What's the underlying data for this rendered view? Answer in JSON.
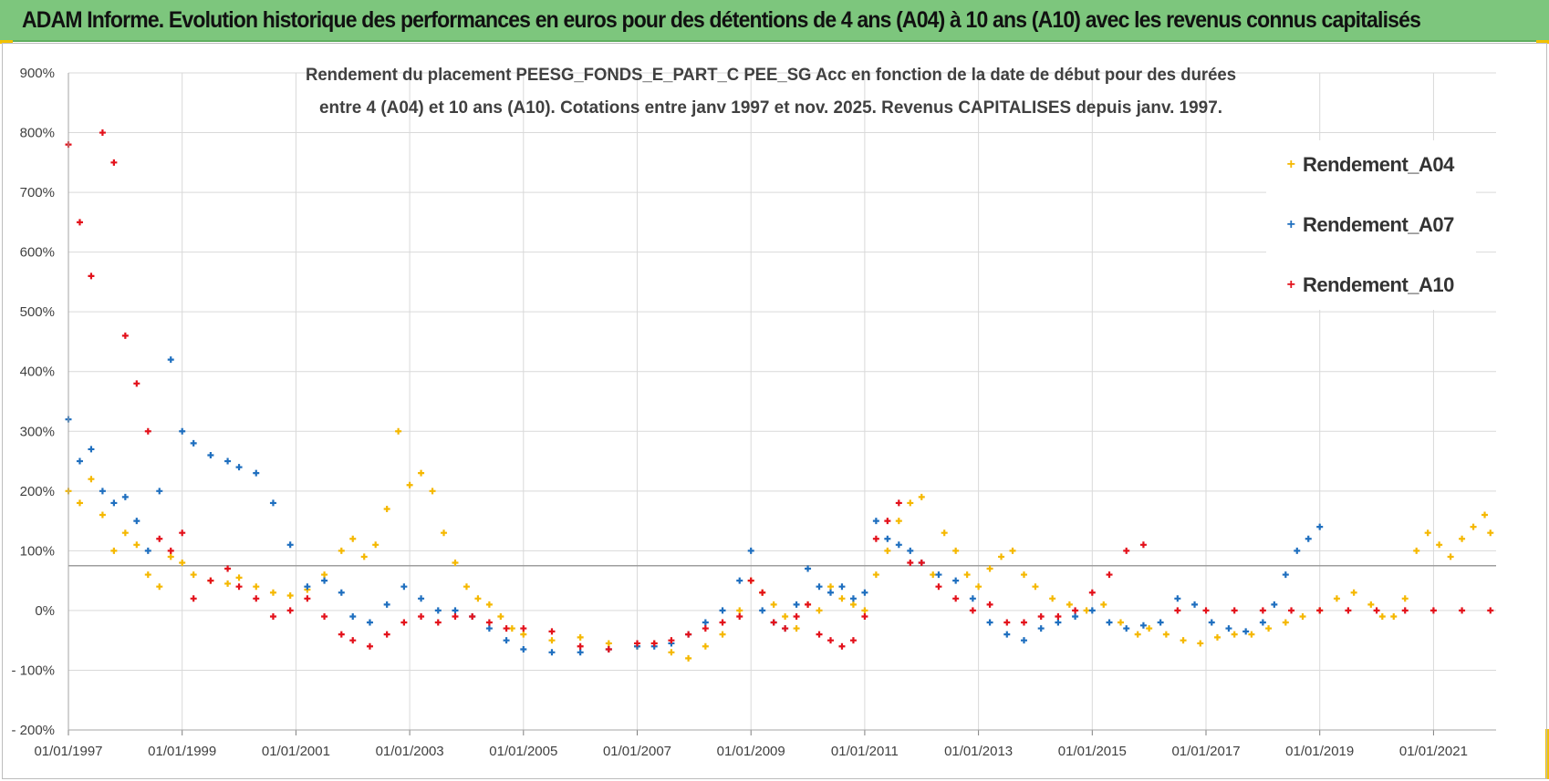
{
  "header": {
    "title": "ADAM Informe. Evolution historique des performances en euros pour des détentions de 4 ans (A04) à 10 ans (A10) avec les revenus connus capitalisés"
  },
  "colors": {
    "header_bg": "#7dc67d",
    "corner_accent": "#f2c200",
    "A04": "#f5b800",
    "A07": "#1f6fbf",
    "A10": "#e3111b",
    "grid": "#d9d9d9",
    "reference_line": "#9e9e9e",
    "axis_text": "#404040"
  },
  "chart_data": {
    "type": "scatter",
    "title_lines": [
      "Rendement du placement PEESG_FONDS_E_PART_C PEE_SG Acc en fonction de la date de début pour des durées",
      "entre 4 (A04) et 10 ans (A10). Cotations entre janv 1997 et nov. 2025. Revenus CAPITALISES depuis janv. 1997."
    ],
    "xlabel": "",
    "ylabel": "",
    "x_tick_labels": [
      "01/01/1997",
      "01/01/1999",
      "01/01/2001",
      "01/01/2003",
      "01/01/2005",
      "01/01/2007",
      "01/01/2009",
      "01/01/2011",
      "01/01/2013",
      "01/01/2015",
      "01/01/2017",
      "01/01/2019",
      "01/01/2021"
    ],
    "xlim": [
      1997.0,
      2022.1
    ],
    "y_tick_labels": [
      "900%",
      "800%",
      "700%",
      "600%",
      "500%",
      "400%",
      "300%",
      "200%",
      "100%",
      "0%",
      "- 100%",
      "- 200%"
    ],
    "ylim": [
      -200,
      900
    ],
    "reference_line_y": 75,
    "grid": true,
    "legend_position": "top-right",
    "series": [
      {
        "name": "Rendement_A04",
        "x": [
          1997.0,
          1997.2,
          1997.4,
          1997.6,
          1997.8,
          1998.0,
          1998.2,
          1998.4,
          1998.6,
          1998.8,
          1999.0,
          1999.2,
          1999.5,
          1999.8,
          2000.0,
          2000.3,
          2000.6,
          2000.9,
          2001.2,
          2001.5,
          2001.8,
          2002.0,
          2002.2,
          2002.4,
          2002.6,
          2002.8,
          2003.0,
          2003.2,
          2003.4,
          2003.6,
          2003.8,
          2004.0,
          2004.2,
          2004.4,
          2004.6,
          2004.8,
          2005.0,
          2005.5,
          2006.0,
          2006.5,
          2007.0,
          2007.3,
          2007.6,
          2007.9,
          2008.2,
          2008.5,
          2008.8,
          2009.0,
          2009.2,
          2009.4,
          2009.6,
          2009.8,
          2010.0,
          2010.2,
          2010.4,
          2010.6,
          2010.8,
          2011.0,
          2011.2,
          2011.4,
          2011.6,
          2011.8,
          2012.0,
          2012.2,
          2012.4,
          2012.6,
          2012.8,
          2013.0,
          2013.2,
          2013.4,
          2013.6,
          2013.8,
          2014.0,
          2014.3,
          2014.6,
          2014.9,
          2015.2,
          2015.5,
          2015.8,
          2016.0,
          2016.3,
          2016.6,
          2016.9,
          2017.2,
          2017.5,
          2017.8,
          2018.1,
          2018.4,
          2018.7,
          2019.0,
          2019.3,
          2019.6,
          2019.9,
          2020.1,
          2020.3,
          2020.5,
          2020.7,
          2020.9,
          2021.1,
          2021.3,
          2021.5,
          2021.7,
          2021.9,
          2022.0
        ],
        "values": [
          200,
          180,
          220,
          160,
          100,
          130,
          110,
          60,
          40,
          90,
          80,
          60,
          50,
          45,
          55,
          40,
          30,
          25,
          35,
          60,
          100,
          120,
          90,
          110,
          170,
          300,
          210,
          230,
          200,
          130,
          80,
          40,
          20,
          10,
          -10,
          -30,
          -40,
          -50,
          -45,
          -55,
          -60,
          -55,
          -70,
          -80,
          -60,
          -40,
          0,
          50,
          30,
          10,
          -10,
          -30,
          10,
          0,
          40,
          20,
          10,
          0,
          60,
          100,
          150,
          180,
          190,
          60,
          130,
          100,
          60,
          40,
          70,
          90,
          100,
          60,
          40,
          20,
          10,
          0,
          10,
          -20,
          -40,
          -30,
          -40,
          -50,
          -55,
          -45,
          -40,
          -40,
          -30,
          -20,
          -10,
          0,
          20,
          30,
          10,
          -10,
          -10,
          20,
          100,
          130,
          110,
          90,
          120,
          140,
          160,
          130
        ]
      },
      {
        "name": "Rendement_A07",
        "x": [
          1997.0,
          1997.2,
          1997.4,
          1997.6,
          1997.8,
          1998.0,
          1998.2,
          1998.4,
          1998.6,
          1998.8,
          1999.0,
          1999.2,
          1999.5,
          1999.8,
          2000.0,
          2000.3,
          2000.6,
          2000.9,
          2001.2,
          2001.5,
          2001.8,
          2002.0,
          2002.3,
          2002.6,
          2002.9,
          2003.2,
          2003.5,
          2003.8,
          2004.1,
          2004.4,
          2004.7,
          2005.0,
          2005.5,
          2006.0,
          2006.5,
          2007.0,
          2007.3,
          2007.6,
          2007.9,
          2008.2,
          2008.5,
          2008.8,
          2009.0,
          2009.2,
          2009.4,
          2009.6,
          2009.8,
          2010.0,
          2010.2,
          2010.4,
          2010.6,
          2010.8,
          2011.0,
          2011.2,
          2011.4,
          2011.6,
          2011.8,
          2012.0,
          2012.3,
          2012.6,
          2012.9,
          2013.2,
          2013.5,
          2013.8,
          2014.1,
          2014.4,
          2014.7,
          2015.0,
          2015.3,
          2015.6,
          2015.9,
          2016.2,
          2016.5,
          2016.8,
          2017.1,
          2017.4,
          2017.7,
          2018.0,
          2018.2,
          2018.4,
          2018.6,
          2018.8,
          2019.0
        ],
        "values": [
          320,
          250,
          270,
          200,
          180,
          190,
          150,
          100,
          200,
          420,
          300,
          280,
          260,
          250,
          240,
          230,
          180,
          110,
          40,
          50,
          30,
          -10,
          -20,
          10,
          40,
          20,
          0,
          0,
          -10,
          -30,
          -50,
          -65,
          -70,
          -70,
          -65,
          -60,
          -60,
          -55,
          -40,
          -20,
          0,
          50,
          100,
          0,
          -20,
          -30,
          10,
          70,
          40,
          30,
          40,
          20,
          30,
          150,
          120,
          110,
          100,
          80,
          60,
          50,
          20,
          -20,
          -40,
          -50,
          -30,
          -20,
          -10,
          0,
          -20,
          -30,
          -25,
          -20,
          20,
          10,
          -20,
          -30,
          -35,
          -20,
          10,
          60,
          100,
          120,
          140
        ]
      },
      {
        "name": "Rendement_A10",
        "x": [
          1997.0,
          1997.2,
          1997.4,
          1997.6,
          1997.8,
          1998.0,
          1998.2,
          1998.4,
          1998.6,
          1998.8,
          1999.0,
          1999.2,
          1999.5,
          1999.8,
          2000.0,
          2000.3,
          2000.6,
          2000.9,
          2001.2,
          2001.5,
          2001.8,
          2002.0,
          2002.3,
          2002.6,
          2002.9,
          2003.2,
          2003.5,
          2003.8,
          2004.1,
          2004.4,
          2004.7,
          2005.0,
          2005.5,
          2006.0,
          2006.5,
          2007.0,
          2007.3,
          2007.6,
          2007.9,
          2008.2,
          2008.5,
          2008.8,
          2009.0,
          2009.2,
          2009.4,
          2009.6,
          2009.8,
          2010.0,
          2010.2,
          2010.4,
          2010.6,
          2010.8,
          2011.0,
          2011.2,
          2011.4,
          2011.6,
          2011.8,
          2012.0,
          2012.3,
          2012.6,
          2012.9,
          2013.2,
          2013.5,
          2013.8,
          2014.1,
          2014.4,
          2014.7,
          2015.0,
          2015.3,
          2015.6,
          2015.9,
          2016.5,
          2017.0,
          2017.5,
          2018.0,
          2018.5,
          2019.0,
          2019.5,
          2020.0,
          2020.5,
          2021.0,
          2021.5,
          2022.0
        ],
        "values": [
          780,
          650,
          560,
          800,
          750,
          460,
          380,
          300,
          120,
          100,
          130,
          20,
          50,
          70,
          40,
          20,
          -10,
          0,
          20,
          -10,
          -40,
          -50,
          -60,
          -40,
          -20,
          -10,
          -20,
          -10,
          -10,
          -20,
          -30,
          -30,
          -35,
          -60,
          -65,
          -55,
          -55,
          -50,
          -40,
          -30,
          -20,
          -10,
          50,
          30,
          -20,
          -30,
          -10,
          10,
          -40,
          -50,
          -60,
          -50,
          -10,
          120,
          150,
          180,
          80,
          80,
          40,
          20,
          0,
          10,
          -20,
          -20,
          -10,
          -10,
          0,
          30,
          60,
          100,
          110,
          0,
          0,
          0,
          0,
          0,
          0,
          0,
          0,
          0,
          0,
          0,
          0
        ]
      }
    ]
  },
  "legend": {
    "items": [
      {
        "label": "Rendement_A04"
      },
      {
        "label": "Rendement_A07"
      },
      {
        "label": "Rendement_A10"
      }
    ]
  }
}
